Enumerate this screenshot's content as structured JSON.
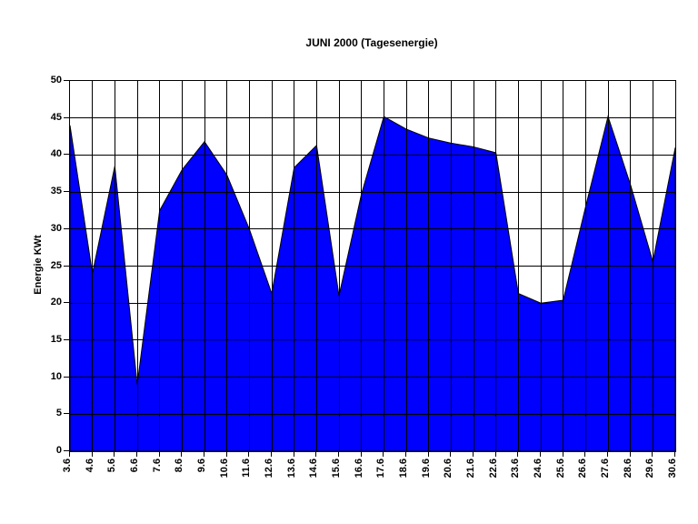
{
  "chart_data": {
    "type": "area",
    "title": "JUNI 2000 (Tagesenergie)",
    "xlabel": "",
    "ylabel": "Energie KWt",
    "categories": [
      "3.6",
      "4.6",
      "5.6",
      "6.6",
      "7.6",
      "8.6",
      "9.6",
      "10.6",
      "11.6",
      "12.6",
      "13.6",
      "14.6",
      "15.6",
      "16.6",
      "17.6",
      "18.6",
      "19.6",
      "20.6",
      "21.6",
      "22.6",
      "23.6",
      "24.6",
      "25.6",
      "26.6",
      "27.6",
      "28.6",
      "29.6",
      "30.6"
    ],
    "values": [
      44,
      24,
      38.5,
      9,
      32.5,
      38,
      41.8,
      37.3,
      30,
      21.3,
      38.3,
      41.3,
      21,
      34.7,
      45.2,
      43.5,
      42.3,
      41.6,
      41.1,
      40.3,
      21.3,
      20,
      20.4,
      33,
      45.2,
      36,
      25.6,
      41
    ],
    "ylim": [
      0,
      50
    ],
    "yticks": [
      "0",
      "5",
      "10",
      "15",
      "20",
      "25",
      "30",
      "35",
      "40",
      "45",
      "50"
    ],
    "ytick_step": 5,
    "grid": "both",
    "legend": "none",
    "fill_color": "#0000ff",
    "line_color": "#000000",
    "grid_color": "#000000",
    "background_color": "#ffffff"
  }
}
